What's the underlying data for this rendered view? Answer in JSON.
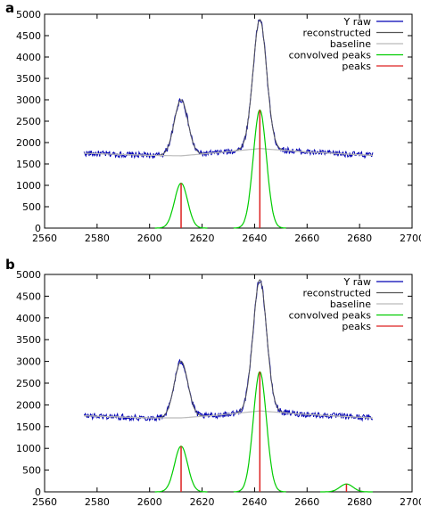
{
  "chart_data": [
    {
      "panel_label": "a",
      "type": "line",
      "xlim": [
        2560,
        2700
      ],
      "ylim": [
        0,
        5000
      ],
      "xticks": [
        2560,
        2580,
        2600,
        2620,
        2640,
        2660,
        2680,
        2700
      ],
      "yticks": [
        0,
        500,
        1000,
        1500,
        2000,
        2500,
        3000,
        3500,
        4000,
        4500,
        5000
      ],
      "legend_position": "top-right",
      "series": [
        {
          "name": "Y raw",
          "color": "#0000b4"
        },
        {
          "name": "reconstructed",
          "color": "#555555"
        },
        {
          "name": "baseline",
          "color": "#bbbbbb"
        },
        {
          "name": "convolved peaks",
          "color": "#00cc00"
        },
        {
          "name": "peaks",
          "color": "#dd2020"
        }
      ],
      "x_range": [
        2575,
        2685
      ],
      "baseline_points": [
        [
          2575,
          1750
        ],
        [
          2600,
          1700
        ],
        [
          2612,
          1690
        ],
        [
          2625,
          1760
        ],
        [
          2642,
          1860
        ],
        [
          2660,
          1780
        ],
        [
          2685,
          1700
        ]
      ],
      "peaks": [
        {
          "position": 2612,
          "height": 1050,
          "width": 2.5
        },
        {
          "position": 2642,
          "height": 2760,
          "width": 2.5
        }
      ],
      "raw_peak_tops": [
        [
          2612,
          3000
        ],
        [
          2642,
          4880
        ]
      ],
      "noise_amplitude": 70
    },
    {
      "panel_label": "b",
      "type": "line",
      "xlim": [
        2560,
        2700
      ],
      "ylim": [
        0,
        5000
      ],
      "xticks": [
        2560,
        2580,
        2600,
        2620,
        2640,
        2660,
        2680,
        2700
      ],
      "yticks": [
        0,
        500,
        1000,
        1500,
        2000,
        2500,
        3000,
        3500,
        4000,
        4500,
        5000
      ],
      "legend_position": "top-right",
      "series": [
        {
          "name": "Y raw",
          "color": "#0000b4"
        },
        {
          "name": "reconstructed",
          "color": "#555555"
        },
        {
          "name": "baseline",
          "color": "#bbbbbb"
        },
        {
          "name": "convolved peaks",
          "color": "#00cc00"
        },
        {
          "name": "peaks",
          "color": "#dd2020"
        }
      ],
      "x_range": [
        2575,
        2685
      ],
      "baseline_points": [
        [
          2575,
          1750
        ],
        [
          2600,
          1700
        ],
        [
          2612,
          1700
        ],
        [
          2625,
          1760
        ],
        [
          2642,
          1860
        ],
        [
          2660,
          1780
        ],
        [
          2685,
          1700
        ]
      ],
      "peaks": [
        {
          "position": 2612,
          "height": 1050,
          "width": 2.5
        },
        {
          "position": 2642,
          "height": 2760,
          "width": 2.5
        },
        {
          "position": 2675,
          "height": 180,
          "width": 2.5
        }
      ],
      "raw_peak_tops": [
        [
          2612,
          3000
        ],
        [
          2642,
          4880
        ]
      ],
      "noise_amplitude": 70
    }
  ]
}
